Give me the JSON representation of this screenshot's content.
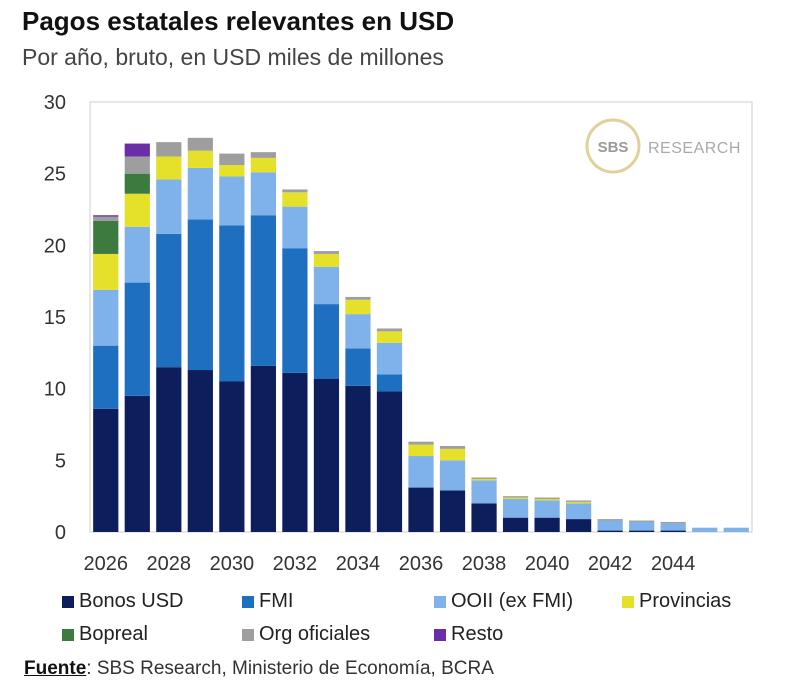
{
  "title": "Pagos estatales relevantes en USD",
  "subtitle": "Por año, bruto, en USD miles de millones",
  "watermark": {
    "badge": "SBS",
    "text": "RESEARCH"
  },
  "source": {
    "label": "Fuente",
    "text": ": SBS Research, Ministerio de Economía, BCRA"
  },
  "chart_data": {
    "type": "bar",
    "stacked": true,
    "title": "Pagos estatales relevantes en USD",
    "xlabel": "",
    "ylabel": "",
    "ylim": [
      0,
      30
    ],
    "yticks": [
      "0",
      "5",
      "10",
      "15",
      "20",
      "25",
      "30"
    ],
    "categories": [
      "2026",
      "2027",
      "2028",
      "2029",
      "2030",
      "2031",
      "2032",
      "2033",
      "2034",
      "2035",
      "2036",
      "2037",
      "2038",
      "2039",
      "2040",
      "2041",
      "2042",
      "2043",
      "2044",
      "2045",
      "2046"
    ],
    "xtick_labels": [
      "2026",
      "2028",
      "2030",
      "2032",
      "2034",
      "2036",
      "2038",
      "2040",
      "2042",
      "2044"
    ],
    "legend_position": "bottom",
    "series": [
      {
        "name": "Bonos USD",
        "color": "#0d1e5c",
        "values": [
          8.6,
          9.5,
          11.5,
          11.3,
          10.5,
          11.6,
          11.1,
          10.7,
          10.2,
          9.8,
          3.1,
          2.9,
          2.0,
          1.0,
          1.0,
          0.9,
          0.1,
          0.1,
          0.1,
          0,
          0
        ]
      },
      {
        "name": "FMI",
        "color": "#1f6fc1",
        "values": [
          4.4,
          7.9,
          9.3,
          10.5,
          10.9,
          10.5,
          8.7,
          5.2,
          2.6,
          1.2,
          0,
          0,
          0,
          0,
          0,
          0,
          0,
          0,
          0,
          0,
          0
        ]
      },
      {
        "name": "OOII (ex FMI)",
        "color": "#7fb2ea",
        "values": [
          3.9,
          3.9,
          3.8,
          3.6,
          3.4,
          3.0,
          2.9,
          2.6,
          2.4,
          2.2,
          2.2,
          2.1,
          1.6,
          1.3,
          1.2,
          1.1,
          0.7,
          0.6,
          0.5,
          0.3,
          0.3
        ]
      },
      {
        "name": "Provincias",
        "color": "#e5e02a",
        "values": [
          2.5,
          2.3,
          1.6,
          1.2,
          0.8,
          1.0,
          1.0,
          0.9,
          1.0,
          0.8,
          0.8,
          0.8,
          0.1,
          0.1,
          0.1,
          0.1,
          0,
          0,
          0,
          0,
          0
        ]
      },
      {
        "name": "Bopreal",
        "color": "#3d7a3f",
        "values": [
          2.3,
          1.4,
          0,
          0,
          0,
          0,
          0,
          0,
          0,
          0,
          0,
          0,
          0,
          0,
          0,
          0,
          0,
          0,
          0,
          0,
          0
        ]
      },
      {
        "name": "Org oficiales",
        "color": "#9e9e9e",
        "values": [
          0.3,
          1.2,
          1.0,
          0.9,
          0.8,
          0.4,
          0.2,
          0.2,
          0.2,
          0.2,
          0.2,
          0.2,
          0.1,
          0.1,
          0.1,
          0.1,
          0.1,
          0.1,
          0.1,
          0,
          0
        ]
      },
      {
        "name": "Resto",
        "color": "#6a2fa8",
        "values": [
          0.1,
          0.9,
          0,
          0,
          0,
          0,
          0,
          0,
          0,
          0,
          0,
          0,
          0,
          0,
          0,
          0,
          0,
          0,
          0,
          0,
          0
        ]
      }
    ]
  }
}
